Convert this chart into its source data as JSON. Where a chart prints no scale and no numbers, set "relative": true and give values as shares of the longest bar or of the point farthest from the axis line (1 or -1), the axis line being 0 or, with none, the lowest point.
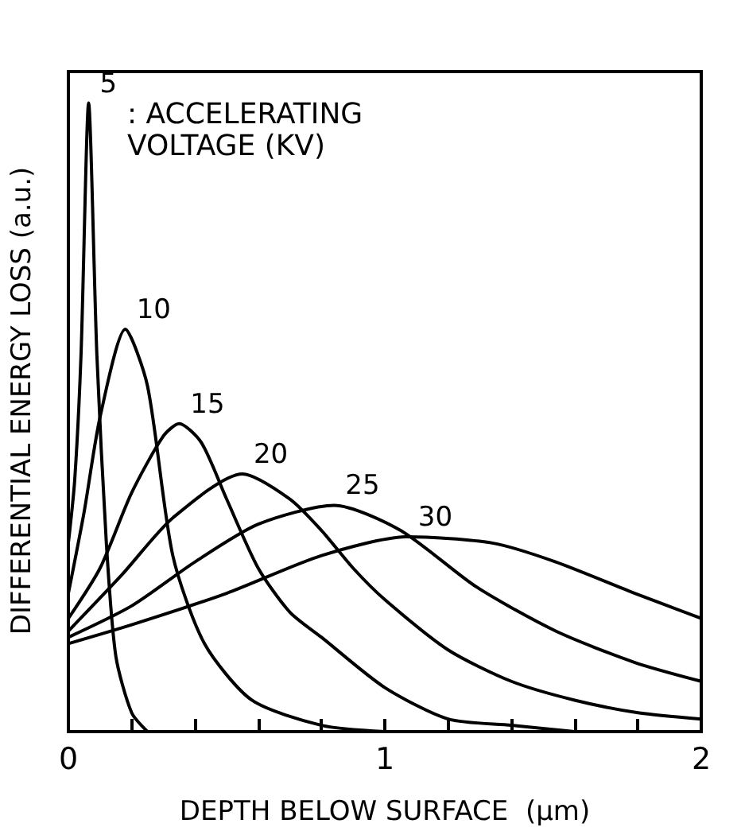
{
  "chart_data": {
    "type": "line",
    "relative": true,
    "xlabel": "DEPTH BELOW SURFACE  (µm)",
    "ylabel": "DIFFERENTIAL ENERGY LOSS (a.u.)",
    "annotations": [
      ": ACCELERATING VOLTAGE (KV)"
    ],
    "xlim": [
      0,
      2
    ],
    "xticks": [
      0,
      {
        "value": 0.2,
        "label": null
      },
      {
        "value": 0.4,
        "label": null
      },
      {
        "value": 0.6,
        "label": null
      },
      {
        "value": 0.8,
        "label": null
      },
      1,
      {
        "value": 1.2,
        "label": null
      },
      {
        "value": 1.4,
        "label": null
      },
      {
        "value": 1.6,
        "label": null
      },
      {
        "value": 1.8,
        "label": null
      },
      2
    ],
    "grid": false,
    "legend": false,
    "marker": "none",
    "line_style": "solid",
    "series": [
      {
        "name": "5",
        "color": "#000000",
        "x": [
          0,
          0.02,
          0.04,
          0.064,
          0.09,
          0.12,
          0.15,
          0.2,
          0.25
        ],
        "values": [
          0.3,
          0.4,
          0.6,
          1,
          0.6,
          0.3,
          0.12,
          0.03,
          0
        ]
      },
      {
        "name": "10",
        "color": "#000000",
        "x": [
          0,
          0.05,
          0.1,
          0.18,
          0.25,
          0.33,
          0.43,
          0.58,
          0.8,
          1
        ],
        "values": [
          0.22,
          0.35,
          0.5,
          0.64,
          0.55,
          0.28,
          0.14,
          0.05,
          0.01,
          0
        ]
      },
      {
        "name": "15",
        "color": "#000000",
        "x": [
          0,
          0.1,
          0.2,
          0.3,
          0.35,
          0.42,
          0.5,
          0.6,
          0.7,
          0.8,
          1,
          1.2,
          1.4,
          1.6
        ],
        "values": [
          0.18,
          0.26,
          0.38,
          0.47,
          0.49,
          0.46,
          0.37,
          0.26,
          0.19,
          0.15,
          0.07,
          0.02,
          0.01,
          0
        ]
      },
      {
        "name": "20",
        "color": "#000000",
        "x": [
          0,
          0.17,
          0.33,
          0.55,
          0.7,
          0.8,
          0.9,
          1,
          1.2,
          1.4,
          1.6,
          1.8,
          2
        ],
        "values": [
          0.16,
          0.25,
          0.34,
          0.41,
          0.37,
          0.32,
          0.26,
          0.21,
          0.13,
          0.08,
          0.05,
          0.03,
          0.02
        ]
      },
      {
        "name": "25",
        "color": "#000000",
        "x": [
          0,
          0.2,
          0.4,
          0.6,
          0.84,
          1.05,
          1.29,
          1.54,
          1.79,
          2
        ],
        "values": [
          0.15,
          0.2,
          0.27,
          0.33,
          0.36,
          0.32,
          0.23,
          0.16,
          0.11,
          0.08
        ]
      },
      {
        "name": "30",
        "color": "#000000",
        "x": [
          0,
          0.2,
          0.5,
          0.8,
          1.07,
          1.34,
          1.54,
          1.79,
          2
        ],
        "values": [
          0.14,
          0.17,
          0.22,
          0.28,
          0.31,
          0.3,
          0.27,
          0.22,
          0.18
        ]
      }
    ]
  }
}
